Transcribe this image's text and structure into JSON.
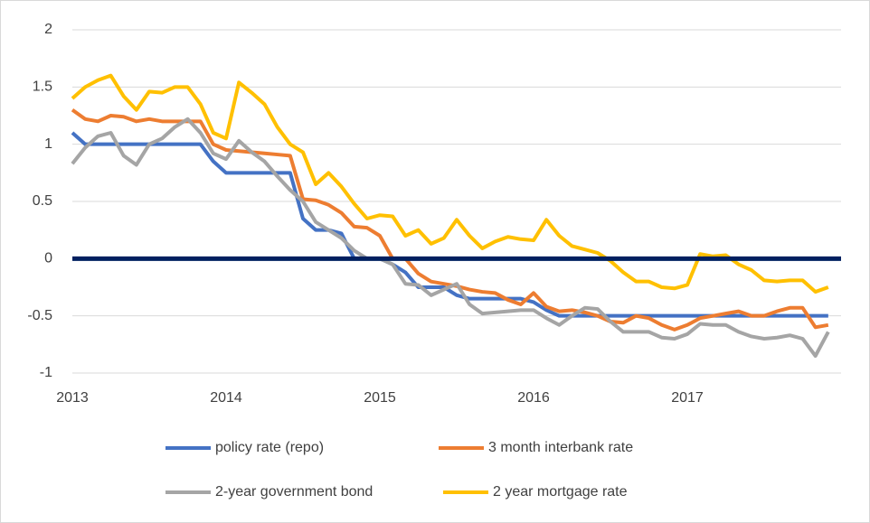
{
  "chart_data": {
    "type": "line",
    "categories": [
      "2013",
      null,
      null,
      null,
      null,
      null,
      null,
      null,
      null,
      null,
      null,
      null,
      "2014",
      null,
      null,
      null,
      null,
      null,
      null,
      null,
      null,
      null,
      null,
      null,
      "2015",
      null,
      null,
      null,
      null,
      null,
      null,
      null,
      null,
      null,
      null,
      null,
      "2016",
      null,
      null,
      null,
      null,
      null,
      null,
      null,
      null,
      null,
      null,
      null,
      "2017",
      null,
      null,
      null,
      null,
      null,
      null,
      null,
      null,
      null,
      null,
      null
    ],
    "series": [
      {
        "name": "policy rate (repo)",
        "color": "#4472c4",
        "values": [
          1.1,
          1.0,
          1.0,
          1.0,
          1.0,
          1.0,
          1.0,
          1.0,
          1.0,
          1.0,
          1.0,
          0.85,
          0.75,
          0.75,
          0.75,
          0.75,
          0.75,
          0.75,
          0.35,
          0.25,
          0.25,
          0.22,
          0.0,
          0.0,
          0.0,
          -0.05,
          -0.12,
          -0.25,
          -0.25,
          -0.25,
          -0.32,
          -0.35,
          -0.35,
          -0.35,
          -0.35,
          -0.35,
          -0.38,
          -0.45,
          -0.5,
          -0.5,
          -0.5,
          -0.5,
          -0.5,
          -0.5,
          -0.5,
          -0.5,
          -0.5,
          -0.5,
          -0.5,
          -0.5,
          -0.5,
          -0.5,
          -0.5,
          -0.5,
          -0.5,
          -0.5,
          -0.5,
          -0.5,
          -0.5,
          -0.5
        ]
      },
      {
        "name": "3 month interbank rate",
        "color": "#ed7d31",
        "values": [
          1.3,
          1.22,
          1.2,
          1.25,
          1.24,
          1.2,
          1.22,
          1.2,
          1.2,
          1.2,
          1.2,
          1.0,
          0.95,
          0.94,
          0.93,
          0.92,
          0.91,
          0.9,
          0.52,
          0.51,
          0.47,
          0.4,
          0.28,
          0.27,
          0.2,
          0.0,
          0.0,
          -0.13,
          -0.2,
          -0.22,
          -0.24,
          -0.27,
          -0.29,
          -0.3,
          -0.36,
          -0.4,
          -0.3,
          -0.42,
          -0.46,
          -0.45,
          -0.47,
          -0.5,
          -0.55,
          -0.56,
          -0.5,
          -0.52,
          -0.58,
          -0.62,
          -0.58,
          -0.52,
          -0.5,
          -0.48,
          -0.46,
          -0.5,
          -0.5,
          -0.46,
          -0.43,
          -0.43,
          -0.6,
          -0.58
        ]
      },
      {
        "name": "2-year government bond",
        "color": "#a5a5a5",
        "values": [
          0.83,
          0.97,
          1.07,
          1.1,
          0.9,
          0.82,
          1.0,
          1.05,
          1.15,
          1.22,
          1.1,
          0.92,
          0.87,
          1.03,
          0.93,
          0.85,
          0.72,
          0.6,
          0.5,
          0.32,
          0.25,
          0.18,
          0.07,
          0.0,
          0.0,
          -0.05,
          -0.22,
          -0.23,
          -0.32,
          -0.27,
          -0.22,
          -0.4,
          -0.48,
          -0.47,
          -0.46,
          -0.45,
          -0.45,
          -0.52,
          -0.58,
          -0.5,
          -0.43,
          -0.44,
          -0.55,
          -0.64,
          -0.64,
          -0.64,
          -0.69,
          -0.7,
          -0.66,
          -0.57,
          -0.58,
          -0.58,
          -0.64,
          -0.68,
          -0.7,
          -0.69,
          -0.67,
          -0.7,
          -0.85,
          -0.64
        ]
      },
      {
        "name": "2 year mortgage rate",
        "color": "#ffc000",
        "values": [
          1.4,
          1.5,
          1.56,
          1.6,
          1.42,
          1.3,
          1.46,
          1.45,
          1.5,
          1.5,
          1.35,
          1.1,
          1.05,
          1.54,
          1.45,
          1.35,
          1.15,
          1.0,
          0.93,
          0.65,
          0.75,
          0.63,
          0.48,
          0.35,
          0.38,
          0.37,
          0.2,
          0.25,
          0.13,
          0.18,
          0.34,
          0.2,
          0.09,
          0.15,
          0.19,
          0.17,
          0.16,
          0.34,
          0.2,
          0.11,
          0.08,
          0.05,
          -0.02,
          -0.12,
          -0.2,
          -0.2,
          -0.25,
          -0.26,
          -0.23,
          0.04,
          0.02,
          0.03,
          -0.05,
          -0.1,
          -0.19,
          -0.2,
          -0.19,
          -0.19,
          -0.29,
          -0.25
        ]
      }
    ],
    "ylim": [
      -1,
      2
    ],
    "yticks": [
      2,
      1.5,
      1,
      0.5,
      0,
      -0.5,
      -1
    ],
    "grid": true,
    "legend": "bottom"
  }
}
